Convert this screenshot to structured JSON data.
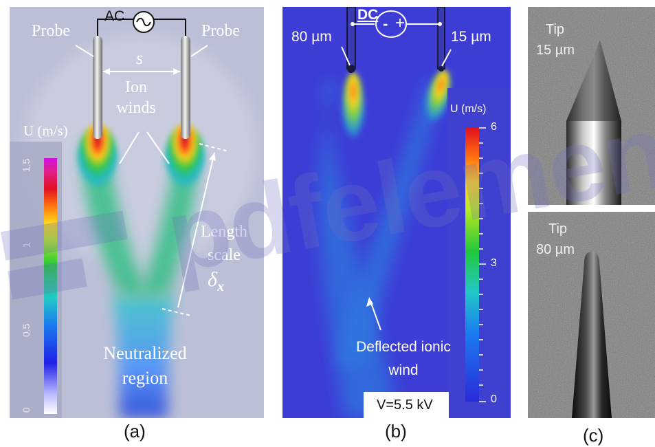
{
  "panel_a": {
    "ac_label": "AC",
    "probe_left": "Probe",
    "probe_right": "Probe",
    "spacing_symbol": "s",
    "ion_winds": [
      "Ion",
      "winds"
    ],
    "colorbar_title": "U (m/s)",
    "colorbar_ticks": [
      "1.5",
      "1",
      "0.5",
      "0"
    ],
    "length_scale": [
      "Length",
      "scale"
    ],
    "delta_symbol": "δ",
    "delta_sub": "x",
    "neutralized": [
      "Neutralized",
      "region"
    ],
    "caption": "(a)"
  },
  "panel_b": {
    "dc_label": "DC",
    "polarity_minus": "-",
    "polarity_plus": "+",
    "tip_left": "80 µm",
    "tip_right": "15 µm",
    "colorbar_title": "U (m/s)",
    "colorbar_ticks": [
      "6",
      "3",
      "0"
    ],
    "deflected": [
      "Deflected ionic",
      "wind"
    ],
    "voltage": "V=5.5 kV",
    "caption": "(b)"
  },
  "panel_c": {
    "top_label": [
      "Tip",
      "15 µm"
    ],
    "bottom_label": [
      "Tip",
      "80 µm"
    ],
    "caption": "(c)"
  },
  "watermark": "pdfelement",
  "colors": {
    "panel_a_bg": "#bcc0d6",
    "panel_b_bg": "#3d3dd6",
    "photo_bg": "#7b7b7b"
  }
}
